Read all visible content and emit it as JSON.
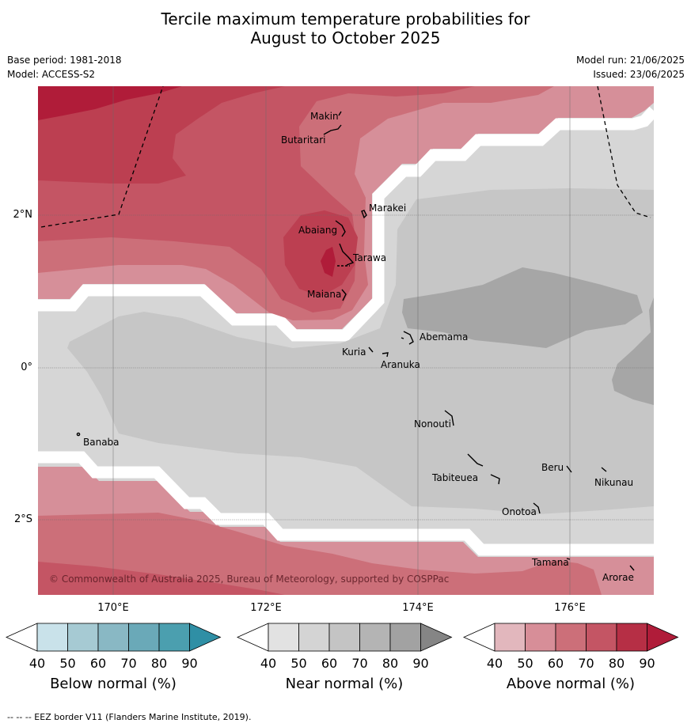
{
  "title_line1": "Tercile maximum temperature probabilities for",
  "title_line2": "August to October 2025",
  "base_period": "Base period: 1981-2018",
  "model": "Model: ACCESS-S2",
  "model_run": "Model run: 21/06/2025",
  "issued": "Issued: 23/06/2025",
  "lat_labels": [
    "2°N",
    "0°",
    "2°S"
  ],
  "lon_labels": [
    "170°E",
    "172°E",
    "174°E",
    "176°E"
  ],
  "places": {
    "makin": "Makin",
    "butaritari": "Butaritari",
    "marakei": "Marakei",
    "abaiang": "Abaiang",
    "tarawa": "Tarawa",
    "maiana": "Maiana",
    "abemama": "Abemama",
    "kuria": "Kuria",
    "aranuka": "Aranuka",
    "nonouti": "Nonouti",
    "banaba": "Banaba",
    "beru": "Beru",
    "nikunau": "Nikunau",
    "tabiteuea": "Tabiteuea",
    "onotoa": "Onotoa",
    "tamana": "Tamana",
    "arorae": "Arorae"
  },
  "copyright": "© Commonwealth of Australia 2025, Bureau of Meteorology, supported by COSPPac",
  "colorbars": [
    {
      "title": "Below normal (%)",
      "ticks": [
        "40",
        "50",
        "60",
        "70",
        "80",
        "90"
      ],
      "colors": [
        "#ffffff",
        "#c9e2ea",
        "#a6cad3",
        "#89b8c4",
        "#6aa9b8",
        "#4b9faf",
        "#2f8fa5"
      ]
    },
    {
      "title": "Near normal (%)",
      "ticks": [
        "40",
        "50",
        "60",
        "70",
        "80",
        "90"
      ],
      "colors": [
        "#ffffff",
        "#e2e2e2",
        "#d4d4d4",
        "#c4c4c4",
        "#b4b4b4",
        "#a2a2a2",
        "#858585"
      ]
    },
    {
      "title": "Above normal (%)",
      "ticks": [
        "40",
        "50",
        "60",
        "70",
        "80",
        "90"
      ],
      "colors": [
        "#ffffff",
        "#e2b7bd",
        "#d78e98",
        "#cc6f79",
        "#c45564",
        "#b62f45",
        "#b01c39"
      ]
    }
  ],
  "footnote": "--  --  -- EEZ border V11 (Flanders Marine Institute, 2019)."
}
